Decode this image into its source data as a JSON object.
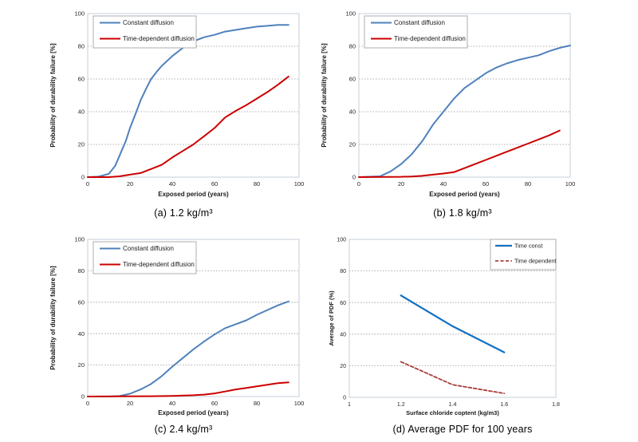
{
  "styles": {
    "background": "#ffffff",
    "axis_border": "#c6cfd8",
    "gridline": "#999999",
    "legend_border": "#a6a6a6",
    "text": "#262626"
  },
  "chart_data": [
    {
      "id": "chart-a",
      "type": "line",
      "caption": "(a) 1.2 kg/m³",
      "xlabel": "Exposed period (years)",
      "ylabel": "Probability of durability failure [%]",
      "xlim": [
        0,
        100
      ],
      "ylim": [
        0,
        100
      ],
      "xticks": [
        0,
        20,
        40,
        60,
        80,
        100
      ],
      "yticks": [
        0,
        20,
        40,
        60,
        80,
        100
      ],
      "grid": "horizontal-dotted",
      "legend_position": "top-left",
      "series": [
        {
          "name": "Constant diffusion",
          "color": "#4f81bd",
          "dash": null,
          "width": 2,
          "points": [
            [
              0,
              0
            ],
            [
              5,
              0.3
            ],
            [
              10,
              2
            ],
            [
              13,
              7
            ],
            [
              15,
              13
            ],
            [
              18,
              22
            ],
            [
              20,
              30
            ],
            [
              23,
              40
            ],
            [
              25,
              47
            ],
            [
              28,
              55
            ],
            [
              30,
              60
            ],
            [
              33,
              65
            ],
            [
              35,
              68
            ],
            [
              40,
              74
            ],
            [
              45,
              79
            ],
            [
              50,
              83
            ],
            [
              55,
              85.5
            ],
            [
              60,
              87
            ],
            [
              65,
              89
            ],
            [
              70,
              90
            ],
            [
              75,
              91
            ],
            [
              80,
              92
            ],
            [
              85,
              92.5
            ],
            [
              90,
              93
            ],
            [
              95,
              93
            ]
          ]
        },
        {
          "name": "Time-dependent diffusion",
          "color": "#cc0000",
          "dash": null,
          "width": 2,
          "points": [
            [
              0,
              0
            ],
            [
              10,
              0
            ],
            [
              15,
              0.5
            ],
            [
              20,
              1.5
            ],
            [
              25,
              2.5
            ],
            [
              30,
              5
            ],
            [
              35,
              7.5
            ],
            [
              40,
              12
            ],
            [
              45,
              16
            ],
            [
              50,
              20
            ],
            [
              55,
              25
            ],
            [
              60,
              30
            ],
            [
              65,
              36.5
            ],
            [
              70,
              40.5
            ],
            [
              75,
              44
            ],
            [
              80,
              48
            ],
            [
              85,
              52
            ],
            [
              90,
              56.5
            ],
            [
              95,
              61.5
            ]
          ]
        }
      ]
    },
    {
      "id": "chart-b",
      "type": "line",
      "caption": "(b) 1.8 kg/m³",
      "xlabel": "Exposed period (years)",
      "ylabel": "Probability of durability failure [%]",
      "xlim": [
        0,
        100
      ],
      "ylim": [
        0,
        100
      ],
      "xticks": [
        0,
        20,
        40,
        60,
        80,
        100
      ],
      "yticks": [
        0,
        20,
        40,
        60,
        80,
        100
      ],
      "grid": "horizontal-dotted",
      "legend_position": "top-left",
      "series": [
        {
          "name": "Constant diffusion",
          "color": "#4f81bd",
          "dash": null,
          "width": 2,
          "points": [
            [
              0,
              0
            ],
            [
              10,
              0.5
            ],
            [
              15,
              3.5
            ],
            [
              20,
              8
            ],
            [
              25,
              14
            ],
            [
              30,
              22
            ],
            [
              35,
              32
            ],
            [
              40,
              40
            ],
            [
              45,
              48
            ],
            [
              50,
              54.5
            ],
            [
              55,
              59
            ],
            [
              60,
              63.5
            ],
            [
              65,
              67
            ],
            [
              70,
              69.5
            ],
            [
              75,
              71.5
            ],
            [
              80,
              73
            ],
            [
              85,
              74.5
            ],
            [
              90,
              77
            ],
            [
              95,
              79
            ],
            [
              100,
              80.5
            ]
          ]
        },
        {
          "name": "Time-dependent diffusion",
          "color": "#cc0000",
          "dash": null,
          "width": 2,
          "points": [
            [
              0,
              0
            ],
            [
              20,
              0.2
            ],
            [
              25,
              0.4
            ],
            [
              30,
              0.8
            ],
            [
              35,
              1.5
            ],
            [
              40,
              2.2
            ],
            [
              45,
              3
            ],
            [
              50,
              5.5
            ],
            [
              55,
              8
            ],
            [
              60,
              10.5
            ],
            [
              65,
              13
            ],
            [
              70,
              15.5
            ],
            [
              75,
              18
            ],
            [
              80,
              20.5
            ],
            [
              85,
              23
            ],
            [
              90,
              25.5
            ],
            [
              95,
              28.5
            ]
          ]
        }
      ]
    },
    {
      "id": "chart-c",
      "type": "line",
      "caption": "(c) 2.4 kg/m³",
      "xlabel": "Exposed period (years)",
      "ylabel": "Probability of durability failure [%]",
      "xlim": [
        0,
        100
      ],
      "ylim": [
        0,
        100
      ],
      "xticks": [
        0,
        20,
        40,
        60,
        80,
        100
      ],
      "yticks": [
        0,
        20,
        40,
        60,
        80,
        100
      ],
      "grid": "horizontal-dotted",
      "legend_position": "top-left",
      "series": [
        {
          "name": "Constant diffusion",
          "color": "#4f81bd",
          "dash": null,
          "width": 2,
          "points": [
            [
              0,
              0
            ],
            [
              10,
              0
            ],
            [
              15,
              0.3
            ],
            [
              20,
              1.8
            ],
            [
              25,
              4.5
            ],
            [
              30,
              8
            ],
            [
              35,
              13
            ],
            [
              40,
              19
            ],
            [
              45,
              24.5
            ],
            [
              50,
              30
            ],
            [
              55,
              35
            ],
            [
              60,
              39.5
            ],
            [
              65,
              43.5
            ],
            [
              70,
              46
            ],
            [
              75,
              48.5
            ],
            [
              80,
              52
            ],
            [
              85,
              55
            ],
            [
              90,
              58
            ],
            [
              95,
              60.5
            ]
          ]
        },
        {
          "name": "Time-dependent diffusion",
          "color": "#cc0000",
          "dash": null,
          "width": 2,
          "points": [
            [
              0,
              0
            ],
            [
              30,
              0.2
            ],
            [
              40,
              0.4
            ],
            [
              50,
              0.8
            ],
            [
              55,
              1.2
            ],
            [
              60,
              2
            ],
            [
              65,
              3.2
            ],
            [
              70,
              4.5
            ],
            [
              75,
              5.5
            ],
            [
              80,
              6.5
            ],
            [
              85,
              7.5
            ],
            [
              90,
              8.5
            ],
            [
              95,
              9
            ]
          ]
        }
      ]
    },
    {
      "id": "chart-d",
      "type": "line",
      "caption": "(d) Average PDF for 100 years",
      "xlabel": "Surface chloride coptent (kg/m3)",
      "ylabel": "Average of PDF (%)",
      "xlim": [
        1,
        1.8
      ],
      "ylim": [
        0,
        100
      ],
      "xticks": [
        1,
        1.2,
        1.4,
        1.6,
        1.8
      ],
      "yticks": [
        0,
        20,
        40,
        60,
        80,
        100
      ],
      "grid": "horizontal-dotted",
      "legend_position": "top-right",
      "series": [
        {
          "name": "Time const",
          "color": "#1170c0",
          "dash": null,
          "width": 2.2,
          "points": [
            [
              1.2,
              64.5
            ],
            [
              1.4,
              45
            ],
            [
              1.6,
              28.5
            ]
          ]
        },
        {
          "name": "Time dependent",
          "color": "#a5403a",
          "dash": "4,2.5",
          "width": 1.8,
          "points": [
            [
              1.2,
              22.5
            ],
            [
              1.4,
              8
            ],
            [
              1.6,
              2.5
            ]
          ]
        }
      ]
    }
  ]
}
